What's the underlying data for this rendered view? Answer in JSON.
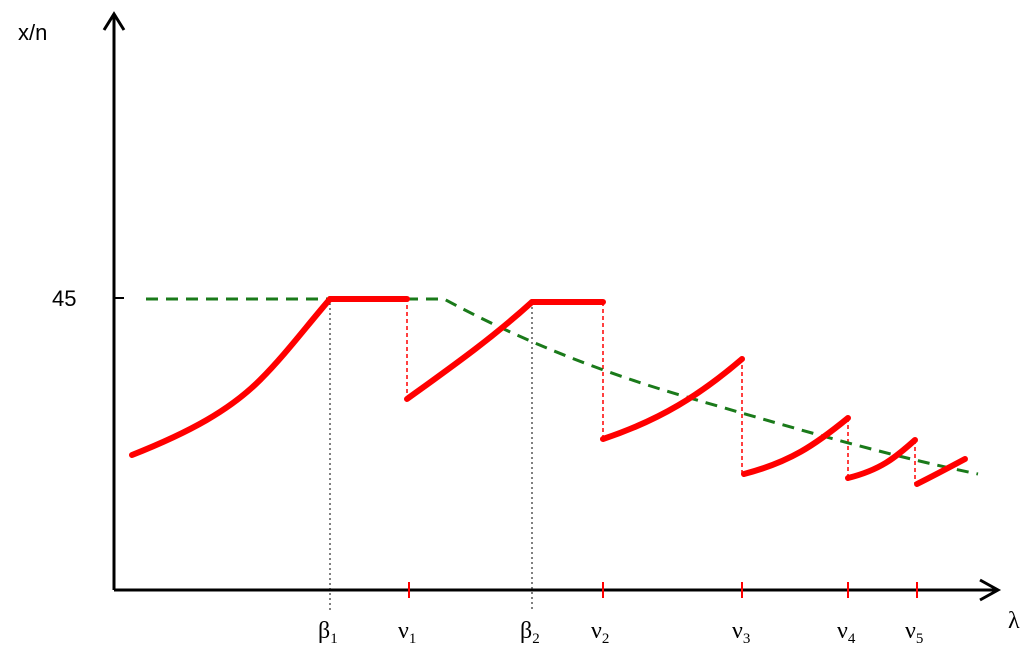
{
  "axes": {
    "y_label": "x/n",
    "x_label": "λ",
    "y_tick_label": "45"
  },
  "x_markers": [
    {
      "symbol": "β",
      "sub": "1"
    },
    {
      "symbol": "ν",
      "sub": "1"
    },
    {
      "symbol": "β",
      "sub": "2"
    },
    {
      "symbol": "ν",
      "sub": "2"
    },
    {
      "symbol": "ν",
      "sub": "3"
    },
    {
      "symbol": "ν",
      "sub": "4"
    },
    {
      "symbol": "ν",
      "sub": "5"
    }
  ],
  "colors": {
    "red_curve": "#ff0000",
    "green_dashed": "#1a7a1a",
    "axis": "#000000"
  }
}
